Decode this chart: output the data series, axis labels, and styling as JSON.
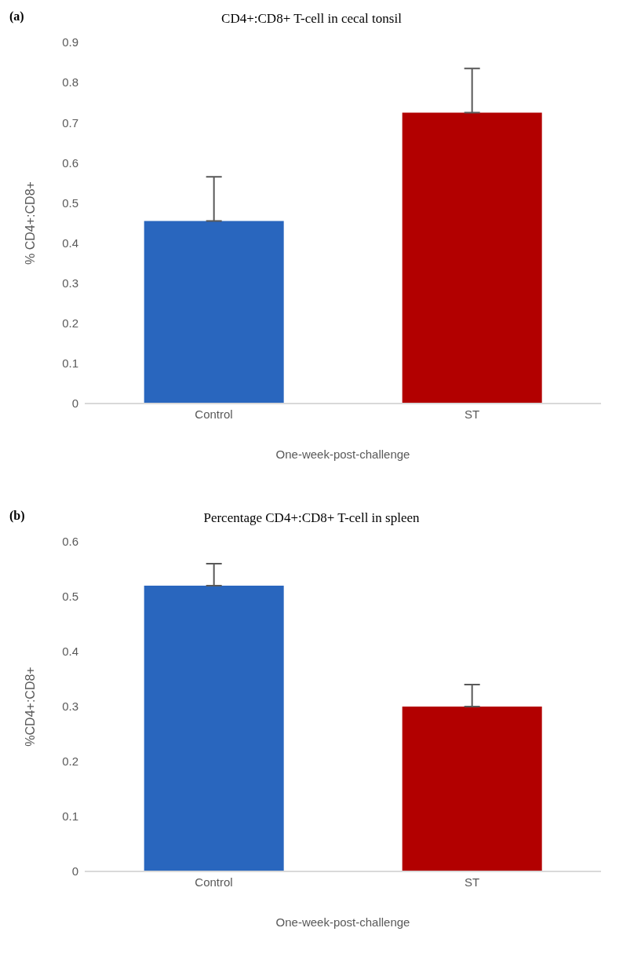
{
  "chart_data": [
    {
      "type": "bar",
      "title": "CD4+:CD8+ T-cell in cecal tonsil",
      "annotations": [
        "(a)"
      ],
      "categories": [
        "Control",
        "ST"
      ],
      "values": [
        0.455,
        0.725
      ],
      "colors": [
        "#2966be",
        "#b20000"
      ],
      "errors": [
        [
          0.455,
          0.565
        ],
        [
          0.725,
          0.835
        ]
      ],
      "xlabel": "One-week-post-challenge",
      "ylabel": "% CD4+:CD8+",
      "ylim": [
        0,
        0.9
      ],
      "yticks": [
        0,
        0.1,
        0.2,
        0.3,
        0.4,
        0.5,
        0.6,
        0.7,
        0.8,
        0.9
      ]
    },
    {
      "type": "bar",
      "title": "Percentage CD4+:CD8+ T-cell in spleen",
      "annotations": [
        "(b)"
      ],
      "categories": [
        "Control",
        "ST"
      ],
      "values": [
        0.52,
        0.3
      ],
      "colors": [
        "#2966be",
        "#b20000"
      ],
      "errors": [
        [
          0.52,
          0.56
        ],
        [
          0.3,
          0.34
        ]
      ],
      "xlabel": "One-week-post-challenge",
      "ylabel": "%CD4+:CD8+",
      "ylim": [
        0,
        0.6
      ],
      "yticks": [
        0,
        0.1,
        0.2,
        0.3,
        0.4,
        0.5,
        0.6
      ]
    }
  ]
}
